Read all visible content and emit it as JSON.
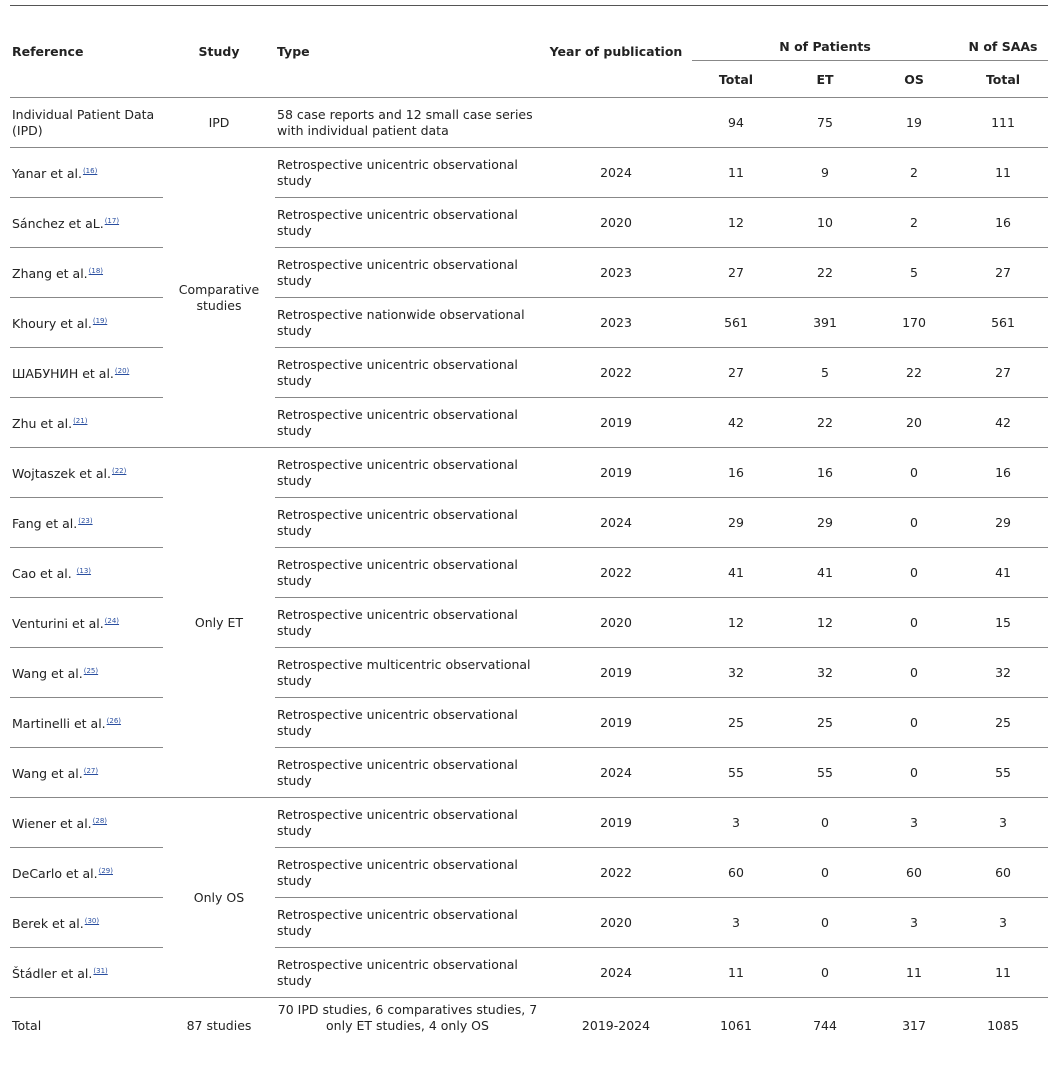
{
  "header": {
    "reference": "Reference",
    "study": "Study",
    "type": "Type",
    "year": "Year of publication",
    "n_patients": "N of Patients",
    "n_saas": "N of SAAs",
    "total": "Total",
    "et": "ET",
    "os": "OS",
    "saa_total": "Total"
  },
  "groups": [
    {
      "study": "IPD",
      "rows": [
        {
          "reference": "Individual Patient Data (IPD)",
          "ref_num": "",
          "type": "58 case reports and 12 small case series with individual patient data",
          "year": "",
          "total": "94",
          "et": "75",
          "os": "19",
          "saa": "111"
        }
      ]
    },
    {
      "study": "Comparative studies",
      "rows": [
        {
          "reference": "Yanar et al.",
          "ref_num": "(16)",
          "type": "Retrospective unicentric observational study",
          "year": "2024",
          "total": "11",
          "et": "9",
          "os": "2",
          "saa": "11"
        },
        {
          "reference": "Sánchez et aL.",
          "ref_num": "(17)",
          "type": "Retrospective unicentric observational study",
          "year": "2020",
          "total": "12",
          "et": "10",
          "os": "2",
          "saa": "16"
        },
        {
          "reference": "Zhang et al.",
          "ref_num": "(18)",
          "type": "Retrospective unicentric observational study",
          "year": "2023",
          "total": "27",
          "et": "22",
          "os": "5",
          "saa": "27"
        },
        {
          "reference": "Khoury et al.",
          "ref_num": "(19)",
          "type": "Retrospective nationwide observational study",
          "year": "2023",
          "total": "561",
          "et": "391",
          "os": "170",
          "saa": "561"
        },
        {
          "reference": "ШАБУНИН et al.",
          "ref_num": "(20)",
          "type": "Retrospective unicentric observational study",
          "year": "2022",
          "total": "27",
          "et": "5",
          "os": "22",
          "saa": "27"
        },
        {
          "reference": "Zhu et al.",
          "ref_num": "(21)",
          "type": "Retrospective unicentric observational study",
          "year": "2019",
          "total": "42",
          "et": "22",
          "os": "20",
          "saa": "42"
        }
      ]
    },
    {
      "study": "Only ET",
      "rows": [
        {
          "reference": "Wojtaszek et al.",
          "ref_num": "(22)",
          "type": "Retrospective unicentric observational study",
          "year": "2019",
          "total": "16",
          "et": "16",
          "os": "0",
          "saa": "16"
        },
        {
          "reference": "Fang et al.",
          "ref_num": "(23)",
          "type": "Retrospective unicentric observational study",
          "year": "2024",
          "total": "29",
          "et": "29",
          "os": "0",
          "saa": "29"
        },
        {
          "reference": "Cao et al. ",
          "ref_num": "(13)",
          "type": "Retrospective unicentric observational study",
          "year": "2022",
          "total": "41",
          "et": "41",
          "os": "0",
          "saa": "41"
        },
        {
          "reference": "Venturini et al.",
          "ref_num": "(24)",
          "type": "Retrospective unicentric observational study",
          "year": "2020",
          "total": "12",
          "et": "12",
          "os": "0",
          "saa": "15"
        },
        {
          "reference": "Wang et al.",
          "ref_num": "(25)",
          "type": "Retrospective  multicentric observational study",
          "year": "2019",
          "total": "32",
          "et": "32",
          "os": "0",
          "saa": "32"
        },
        {
          "reference": "Martinelli et al.",
          "ref_num": "(26)",
          "type": "Retrospective unicentric observational study",
          "year": "2019",
          "total": "25",
          "et": "25",
          "os": "0",
          "saa": "25"
        },
        {
          "reference": "Wang et al.",
          "ref_num": "(27)",
          "type": "Retrospective unicentric observational study",
          "year": "2024",
          "total": "55",
          "et": "55",
          "os": "0",
          "saa": "55"
        }
      ]
    },
    {
      "study": "Only OS",
      "rows": [
        {
          "reference": "Wiener et al.",
          "ref_num": "(28)",
          "type": "Retrospective unicentric observational study",
          "year": "2019",
          "total": "3",
          "et": "0",
          "os": "3",
          "saa": "3"
        },
        {
          "reference": "DeCarlo et al.",
          "ref_num": "(29)",
          "type": "Retrospective unicentric observational study",
          "year": "2022",
          "total": "60",
          "et": "0",
          "os": "60",
          "saa": "60"
        },
        {
          "reference": "Berek et al.",
          "ref_num": "(30)",
          "type": "Retrospective unicentric observational study",
          "year": "2020",
          "total": "3",
          "et": "0",
          "os": "3",
          "saa": "3"
        },
        {
          "reference": "Štádler et al.",
          "ref_num": "(31)",
          "type": "Retrospective unicentric observational study",
          "year": "2024",
          "total": "11",
          "et": "0",
          "os": "11",
          "saa": "11"
        }
      ]
    }
  ],
  "total_row": {
    "reference": "Total",
    "study": "87 studies",
    "type": "70 IPD studies, 6 comparatives studies, 7 only ET studies, 4 only OS",
    "year": "2019-2024",
    "total": "1061",
    "et": "744",
    "os": "317",
    "saa": "1085"
  }
}
